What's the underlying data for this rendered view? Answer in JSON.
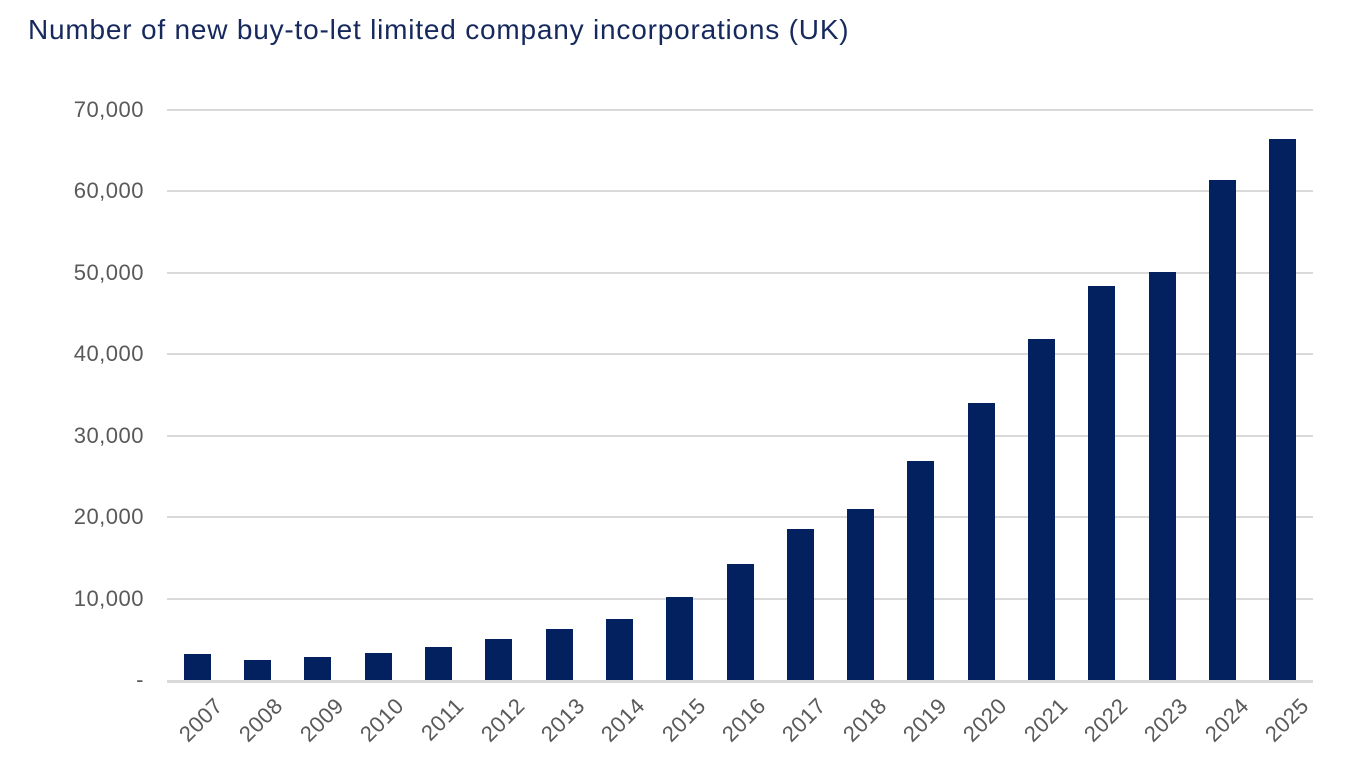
{
  "header": {
    "title": "Number of new buy-to-let limited company incorporations (UK)"
  },
  "colors": {
    "bar": "#03215E",
    "title": "#16295D",
    "tick_label": "#595959",
    "gridline": "#D9D9D9",
    "background": "#FFFFFF"
  },
  "chart_data": {
    "type": "bar",
    "title": "Number of new buy-to-let limited company incorporations (UK)",
    "categories": [
      "2007",
      "2008",
      "2009",
      "2010",
      "2011",
      "2012",
      "2013",
      "2014",
      "2015",
      "2016",
      "2017",
      "2018",
      "2019",
      "2020",
      "2021",
      "2022",
      "2023",
      "2024",
      "2025"
    ],
    "values": [
      3200,
      2400,
      2800,
      3300,
      4100,
      5000,
      6250,
      7500,
      10250,
      14300,
      18550,
      20950,
      26900,
      34050,
      41900,
      48400,
      50100,
      61400,
      66500
    ],
    "xlabel": "",
    "ylabel": "",
    "ylim": [
      0,
      70000
    ],
    "grid": "horizontal",
    "legend": "none",
    "yticks": [
      {
        "value": 0,
        "label": "-"
      },
      {
        "value": 10000,
        "label": "10,000"
      },
      {
        "value": 20000,
        "label": "20,000"
      },
      {
        "value": 30000,
        "label": "30,000"
      },
      {
        "value": 40000,
        "label": "40,000"
      },
      {
        "value": 50000,
        "label": "50,000"
      },
      {
        "value": 60000,
        "label": "60,000"
      },
      {
        "value": 70000,
        "label": "70,000"
      }
    ]
  }
}
